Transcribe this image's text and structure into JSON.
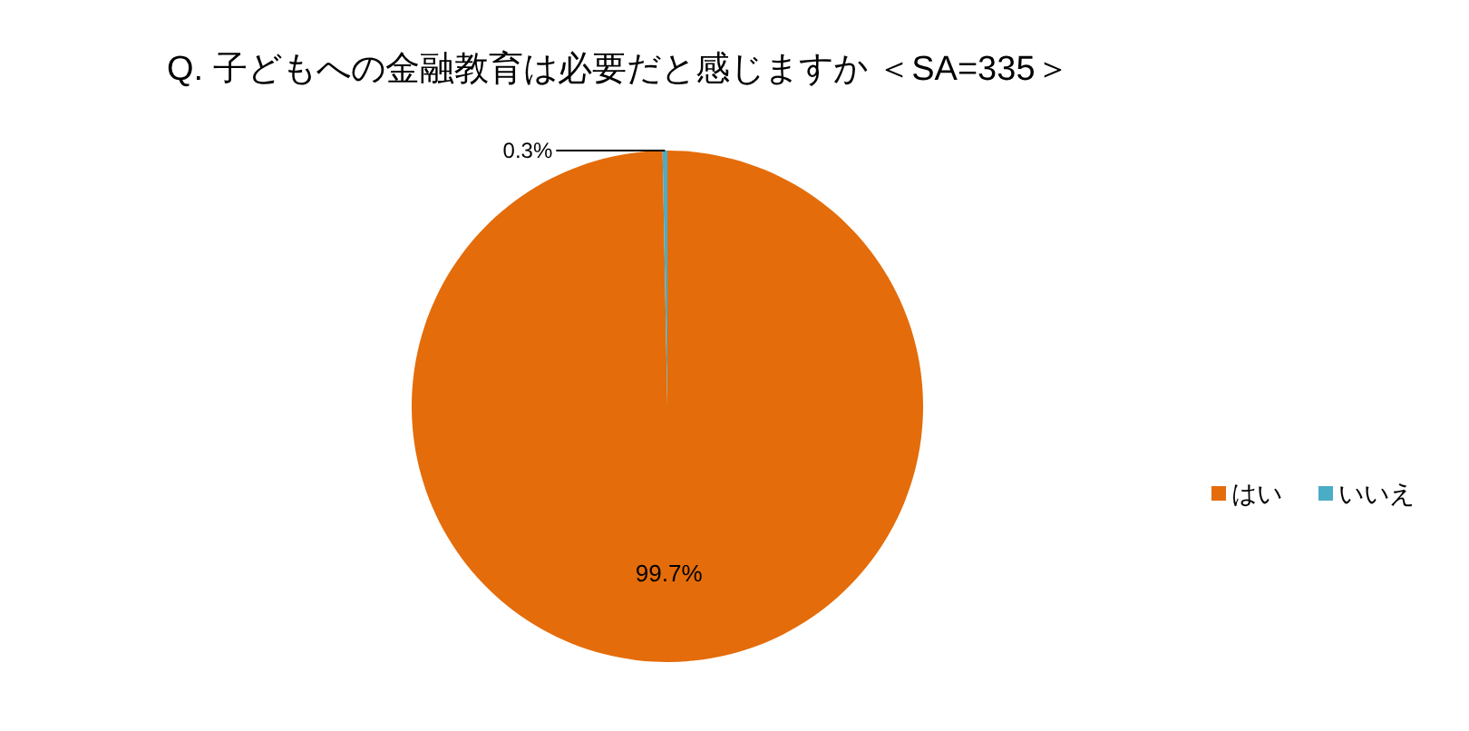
{
  "chart_data": {
    "type": "pie",
    "title": "Q. 子どもへの金融教育は必要だと感じますか ＜SA=335＞",
    "categories": [
      "はい",
      "いいえ"
    ],
    "values": [
      99.7,
      0.3
    ],
    "value_labels": [
      "99.7%",
      "0.3%"
    ],
    "colors": [
      "#e46c0a",
      "#4bacc6"
    ],
    "legend": "right"
  }
}
